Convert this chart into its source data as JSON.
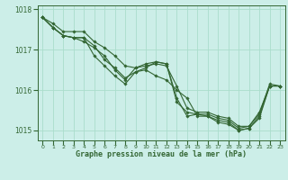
{
  "title": "Graphe pression niveau de la mer (hPa)",
  "background_color": "#cceee8",
  "grid_color": "#aaddcc",
  "line_color": "#336633",
  "x_values": [
    0,
    1,
    2,
    3,
    4,
    5,
    6,
    7,
    8,
    9,
    10,
    11,
    12,
    13,
    14,
    15,
    16,
    17,
    18,
    19,
    20,
    21,
    22,
    23
  ],
  "series": [
    [
      1017.8,
      1017.65,
      1017.45,
      1017.45,
      1017.45,
      1017.2,
      1017.05,
      1016.85,
      1016.6,
      1016.55,
      1016.6,
      1016.65,
      1016.6,
      1016.1,
      1015.55,
      1015.45,
      1015.45,
      1015.35,
      1015.3,
      1015.1,
      1015.1,
      1015.45,
      1016.1,
      1016.1
    ],
    [
      1017.8,
      1017.55,
      1017.35,
      1017.3,
      1017.2,
      1017.05,
      1016.85,
      1016.5,
      1016.25,
      1016.55,
      1016.65,
      1016.7,
      1016.65,
      1015.8,
      1015.35,
      1015.4,
      1015.4,
      1015.3,
      1015.25,
      1015.05,
      1015.1,
      1015.4,
      1016.15,
      1016.1
    ],
    [
      1017.8,
      1017.55,
      1017.35,
      1017.3,
      1017.3,
      1016.85,
      1016.6,
      1016.35,
      1016.15,
      1016.45,
      1016.55,
      1016.7,
      1016.65,
      1015.7,
      1015.45,
      1015.4,
      1015.35,
      1015.25,
      1015.2,
      1015.0,
      1015.05,
      1015.35,
      1016.1,
      1016.1
    ],
    [
      1017.8,
      1017.55,
      1017.35,
      1017.3,
      1017.3,
      1017.1,
      1016.75,
      1016.55,
      1016.3,
      1016.45,
      1016.5,
      1016.35,
      1016.25,
      1016.0,
      1015.8,
      1015.35,
      1015.35,
      1015.2,
      1015.15,
      1015.0,
      1015.05,
      1015.3,
      1016.1,
      1016.1
    ]
  ],
  "ylim": [
    1014.75,
    1018.1
  ],
  "yticks": [
    1015,
    1016,
    1017,
    1018
  ],
  "xlim": [
    -0.5,
    23.5
  ],
  "xtick_fontsize": 4.5,
  "ytick_fontsize": 5.5,
  "xlabel_fontsize": 6.0
}
